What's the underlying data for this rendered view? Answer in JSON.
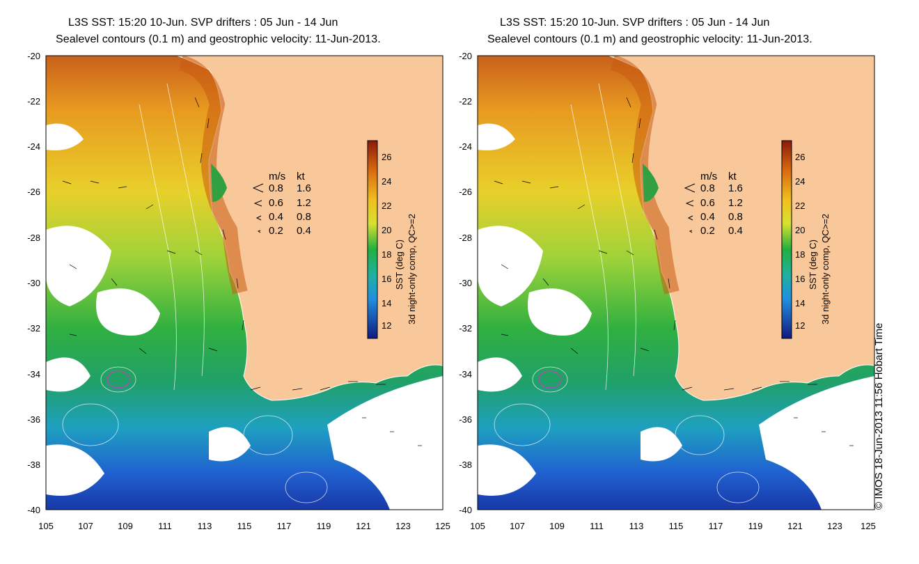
{
  "title_line1": "L3S SST: 15:20 10-Jun. SVP drifters : 05 Jun - 14 Jun",
  "title_line2": "Sealevel contours (0.1 m) and geostrophic velocity: 11-Jun-2013.",
  "y_ticks": [
    "-20",
    "-22",
    "-24",
    "-26",
    "-28",
    "-30",
    "-32",
    "-34",
    "-36",
    "-38",
    "-40"
  ],
  "x_ticks": [
    "105",
    "107",
    "109",
    "111",
    "113",
    "115",
    "117",
    "119",
    "121",
    "123",
    "125"
  ],
  "velocity_legend": {
    "header_ms": "m/s",
    "header_kt": "kt",
    "rows": [
      {
        "ms": "0.8",
        "kt": "1.6"
      },
      {
        "ms": "0.6",
        "kt": "1.2"
      },
      {
        "ms": "0.4",
        "kt": "0.8"
      },
      {
        "ms": "0.2",
        "kt": "0.4"
      }
    ]
  },
  "colorbar": {
    "ticks": [
      "26",
      "24",
      "22",
      "20",
      "18",
      "16",
      "14",
      "12"
    ],
    "title_line1": "SST (deg C)",
    "title_line2": "3d night-only comp, QC>=2",
    "range": [
      11,
      27
    ]
  },
  "copyright": "© IMOS 18-Jun-2013 11:56 Hobart Time",
  "colors": {
    "land": "#f9c89a",
    "warm": "#c85a10",
    "mid": "#e8d020",
    "cool": "#20a040",
    "cold": "#2050c0"
  }
}
